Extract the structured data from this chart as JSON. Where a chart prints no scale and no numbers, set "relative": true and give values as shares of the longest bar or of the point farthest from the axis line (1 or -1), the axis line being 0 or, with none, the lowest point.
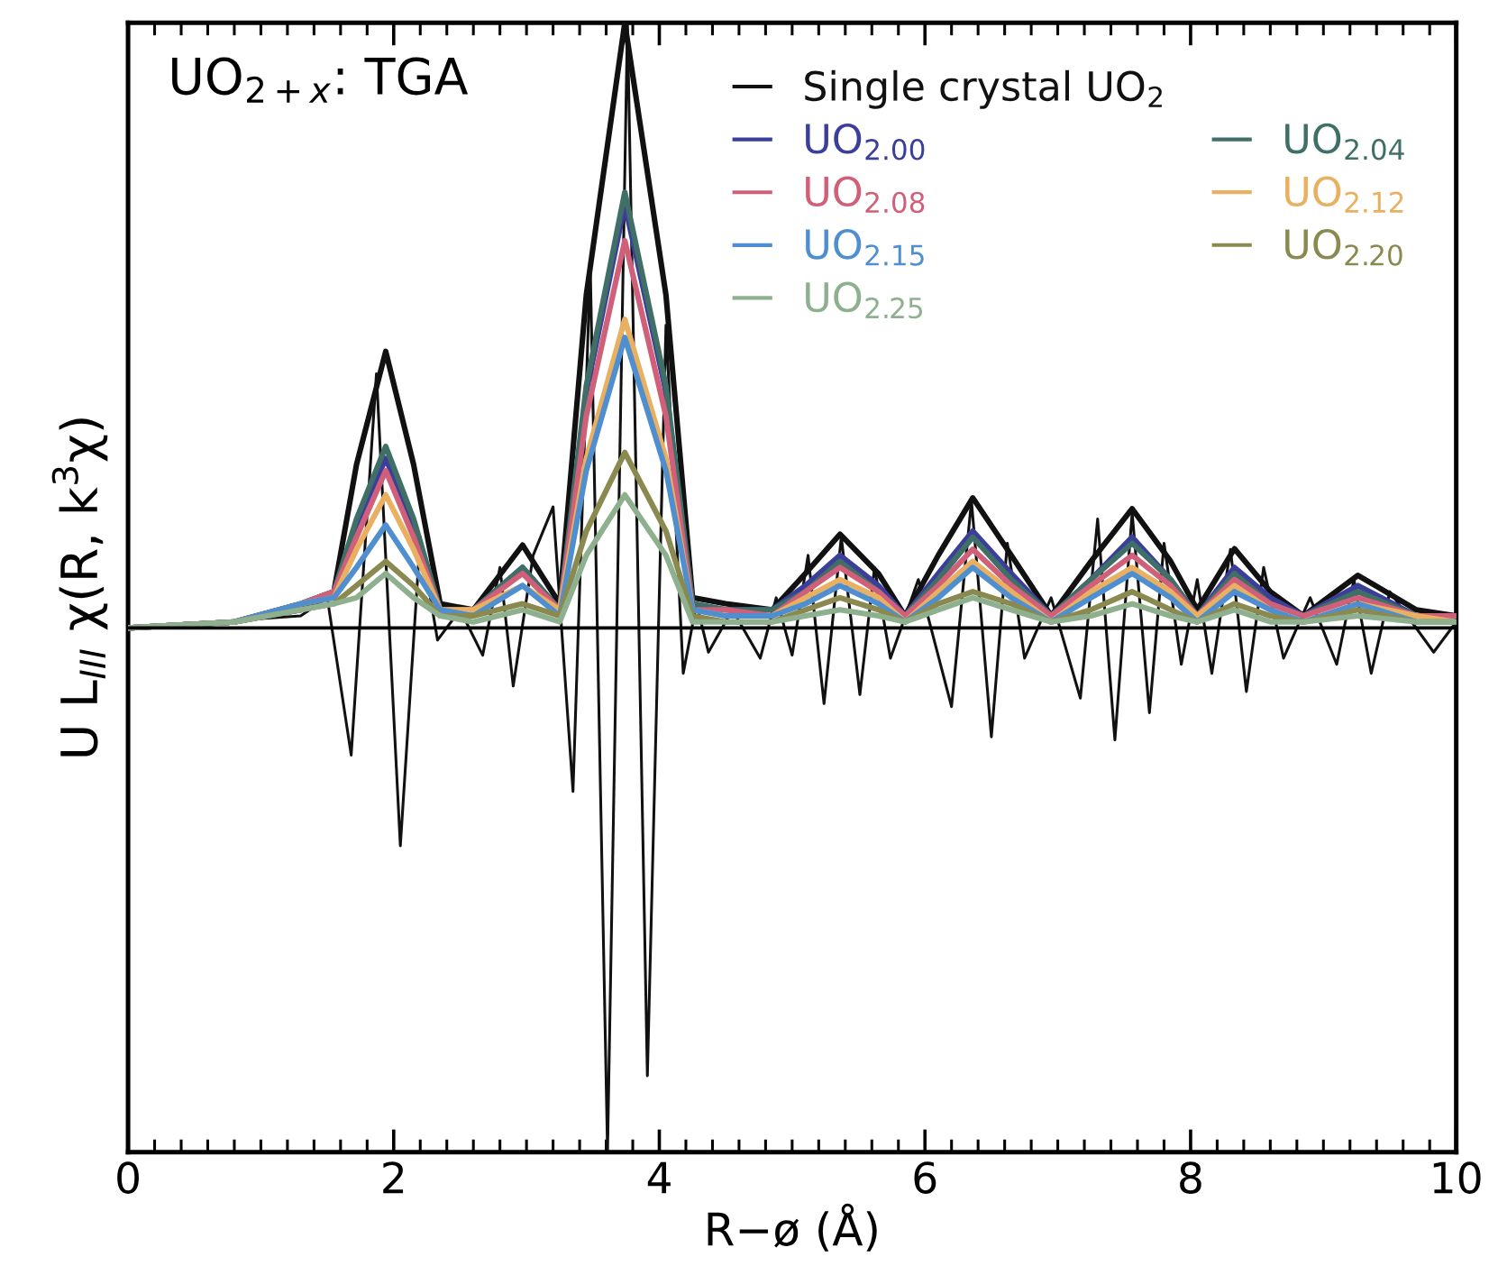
{
  "chart_data": {
    "type": "line",
    "relative": true,
    "xlabel": "R−ø (Å)",
    "ylabel": "U L$_{III}$ χ(R, k$^{3}$χ)",
    "annotations": [
      "UO$_{2+x}$: TGA"
    ],
    "xlim": [
      0,
      10
    ],
    "xticks": [
      0,
      2,
      4,
      6,
      8,
      10
    ],
    "tick_labels": "x",
    "grid": false,
    "legend": "top right",
    "marker": "none",
    "line_style": "solid",
    "x": [
      0,
      0.8,
      1.3,
      1.55,
      1.72,
      1.94,
      2.15,
      2.35,
      2.6,
      2.97,
      3.25,
      3.45,
      3.74,
      4.05,
      4.25,
      4.5,
      4.85,
      5.1,
      5.36,
      5.65,
      5.85,
      6.1,
      6.36,
      6.65,
      6.95,
      7.25,
      7.56,
      7.85,
      8.05,
      8.33,
      8.6,
      8.85,
      9.26,
      9.7,
      10
    ],
    "ref_lines": [
      {
        "axis": "y",
        "value": 0,
        "label": null,
        "color": "#000000"
      }
    ],
    "series": [
      {
        "name": "Single crystal UO$_{2}$",
        "color": "#111111",
        "values": [
          0,
          0.01,
          0.03,
          0.06,
          0.27,
          0.457,
          0.27,
          0.04,
          0.03,
          0.137,
          0.04,
          0.55,
          1.0,
          0.55,
          0.05,
          0.04,
          0.03,
          0.09,
          0.155,
          0.09,
          0.02,
          0.12,
          0.215,
          0.12,
          0.02,
          0.11,
          0.197,
          0.11,
          0.03,
          0.131,
          0.06,
          0.02,
          0.087,
          0.03,
          0.02
        ]
      },
      {
        "name": "UO$_{2.00}$",
        "color": "#3b3f9a",
        "values": [
          0,
          0.01,
          0.04,
          0.06,
          0.17,
          0.28,
          0.17,
          0.03,
          0.03,
          0.1,
          0.03,
          0.39,
          0.7,
          0.39,
          0.04,
          0.03,
          0.03,
          0.07,
          0.12,
          0.07,
          0.02,
          0.09,
          0.16,
          0.09,
          0.02,
          0.08,
          0.15,
          0.08,
          0.02,
          0.1,
          0.05,
          0.02,
          0.07,
          0.02,
          0.02
        ]
      },
      {
        "name": "UO$_{2.04}$",
        "color": "#3f6f66",
        "values": [
          0,
          0.01,
          0.04,
          0.06,
          0.18,
          0.3,
          0.18,
          0.03,
          0.03,
          0.1,
          0.03,
          0.4,
          0.72,
          0.4,
          0.04,
          0.03,
          0.03,
          0.06,
          0.11,
          0.06,
          0.02,
          0.08,
          0.15,
          0.08,
          0.02,
          0.08,
          0.14,
          0.08,
          0.02,
          0.09,
          0.04,
          0.02,
          0.06,
          0.02,
          0.02
        ]
      },
      {
        "name": "UO$_{2.08}$",
        "color": "#d0607a",
        "values": [
          0,
          0.01,
          0.04,
          0.06,
          0.15,
          0.26,
          0.15,
          0.03,
          0.03,
          0.09,
          0.03,
          0.35,
          0.64,
          0.35,
          0.03,
          0.03,
          0.02,
          0.06,
          0.1,
          0.06,
          0.02,
          0.07,
          0.13,
          0.07,
          0.02,
          0.07,
          0.12,
          0.07,
          0.02,
          0.08,
          0.04,
          0.02,
          0.05,
          0.02,
          0.02
        ]
      },
      {
        "name": "UO$_{2.12}$",
        "color": "#e8b060",
        "values": [
          null,
          null,
          0.04,
          0.05,
          0.13,
          0.22,
          0.13,
          0.03,
          0.03,
          0.07,
          0.03,
          0.28,
          0.51,
          0.28,
          0.03,
          0.02,
          0.02,
          0.05,
          0.08,
          0.05,
          0.01,
          0.06,
          0.11,
          0.06,
          0.01,
          0.06,
          0.1,
          0.06,
          0.02,
          0.07,
          0.03,
          0.01,
          0.04,
          0.02,
          0.01
        ]
      },
      {
        "name": "UO$_{2.15}$",
        "color": "#4f8fd0",
        "values": [
          0,
          0.01,
          0.04,
          0.05,
          0.1,
          0.17,
          0.1,
          0.03,
          0.02,
          0.07,
          0.02,
          0.26,
          0.48,
          0.26,
          0.03,
          0.02,
          0.02,
          0.04,
          0.07,
          0.04,
          0.01,
          0.05,
          0.1,
          0.05,
          0.01,
          0.05,
          0.09,
          0.05,
          0.01,
          0.06,
          0.03,
          0.01,
          0.04,
          0.01,
          0.01
        ]
      },
      {
        "name": "UO$_{2.20}$",
        "color": "#8a8a50",
        "values": [
          0,
          0.01,
          0.03,
          0.04,
          0.07,
          0.11,
          0.07,
          0.02,
          0.02,
          0.04,
          0.02,
          0.16,
          0.29,
          0.16,
          0.02,
          0.01,
          0.01,
          0.03,
          0.05,
          0.03,
          0.01,
          0.04,
          0.06,
          0.04,
          0.01,
          0.03,
          0.06,
          0.03,
          0.01,
          0.04,
          0.02,
          0.01,
          0.03,
          0.01,
          0.01
        ]
      },
      {
        "name": "UO$_{2.25}$",
        "color": "#8fb08f",
        "values": [
          0,
          0.01,
          0.03,
          0.04,
          0.05,
          0.09,
          0.05,
          0.02,
          0.01,
          0.03,
          0.01,
          0.12,
          0.22,
          0.12,
          0.01,
          0.01,
          0.01,
          0.02,
          0.03,
          0.02,
          0.01,
          0.03,
          0.05,
          0.03,
          0.01,
          0.02,
          0.04,
          0.02,
          0.01,
          0.03,
          0.01,
          0.01,
          0.02,
          0.01,
          0.01
        ]
      },
      {
        "color": "#111111",
        "x": [
          0,
          1.3,
          1.5,
          1.68,
          1.87,
          2.05,
          2.2,
          2.33,
          2.5,
          2.67,
          2.8,
          2.9,
          3.05,
          3.2,
          3.35,
          3.48,
          3.61,
          3.76,
          3.91,
          4.05,
          4.18,
          4.28,
          4.37,
          4.55,
          4.76,
          4.88,
          5.0,
          5.12,
          5.24,
          5.37,
          5.51,
          5.62,
          5.74,
          5.95,
          6.2,
          6.35,
          6.5,
          6.62,
          6.75,
          6.95,
          7.17,
          7.3,
          7.43,
          7.56,
          7.69,
          7.8,
          7.93,
          8.05,
          8.16,
          8.3,
          8.42,
          8.55,
          8.7,
          8.9,
          9.1,
          9.23,
          9.36,
          9.5,
          9.83,
          10
        ],
        "values": [
          0,
          0.02,
          0.05,
          -0.21,
          0.42,
          -0.36,
          0.15,
          -0.02,
          0.03,
          -0.045,
          0.1,
          -0.096,
          0.12,
          0.2,
          -0.27,
          0.6,
          -0.866,
          1.0,
          -0.74,
          0.5,
          -0.075,
          0.04,
          -0.04,
          0.03,
          -0.05,
          0.05,
          -0.045,
          0.12,
          -0.125,
          0.15,
          -0.11,
          0.1,
          -0.05,
          0.08,
          -0.13,
          0.21,
          -0.18,
          0.14,
          -0.05,
          0.05,
          -0.116,
          0.18,
          -0.185,
          0.19,
          -0.14,
          0.14,
          -0.06,
          0.08,
          -0.075,
          0.13,
          -0.105,
          0.1,
          -0.05,
          0.05,
          -0.06,
          0.08,
          -0.075,
          0.06,
          -0.04,
          0.01
        ]
      }
    ]
  }
}
